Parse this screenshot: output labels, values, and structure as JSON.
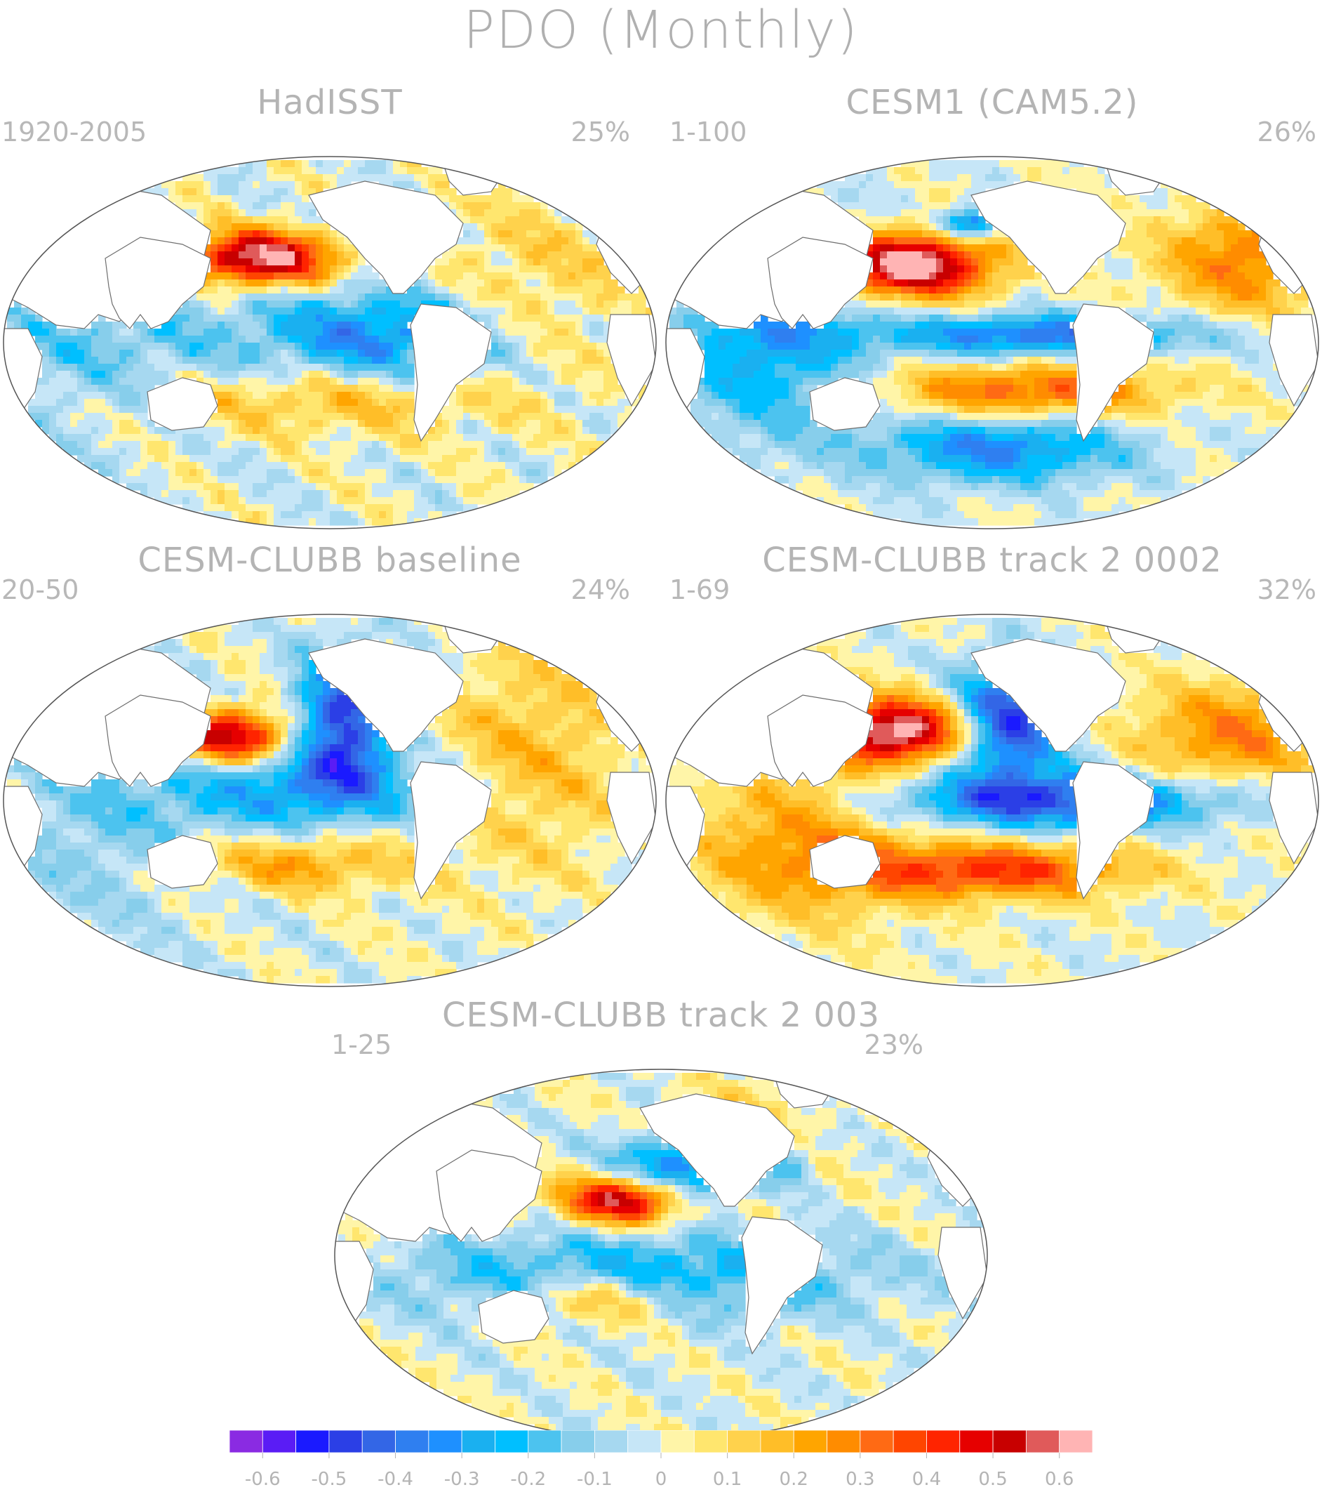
{
  "title": "PDO (Monthly)",
  "panels": [
    {
      "name": "HadISST",
      "years": "1920-2005",
      "pct": "25%"
    },
    {
      "name": "CESM1 (CAM5.2)",
      "years": "1-100",
      "pct": "26%"
    },
    {
      "name": "CESM-CLUBB baseline",
      "years": "20-50",
      "pct": "24%"
    },
    {
      "name": "CESM-CLUBB track 2 0002",
      "years": "1-69",
      "pct": "32%"
    },
    {
      "name": "CESM-CLUBB track 2 003",
      "years": "1-25",
      "pct": "23%"
    }
  ],
  "colorbar": {
    "colors": [
      "#8a2be2",
      "#5a1cf5",
      "#1a1aff",
      "#2b3fe6",
      "#3366e6",
      "#2f7ff0",
      "#1e90ff",
      "#1ab0f0",
      "#00bfff",
      "#4cc3ef",
      "#87ceeb",
      "#a6d8f0",
      "#c6e6f7",
      "#fff5a8",
      "#ffe66e",
      "#ffd24c",
      "#ffbe28",
      "#ffa500",
      "#ff8c00",
      "#ff6a14",
      "#ff4500",
      "#ff2400",
      "#e60000",
      "#c80000",
      "#e05a5a",
      "#ffb4b4"
    ],
    "tick_labels": [
      "-0.6",
      "-0.5",
      "-0.4",
      "-0.3",
      "-0.2",
      "-0.1",
      "0",
      "0.1",
      "0.2",
      "0.3",
      "0.4",
      "0.5",
      "0.6"
    ],
    "tick_values": [
      -0.6,
      -0.5,
      -0.4,
      -0.3,
      -0.2,
      -0.1,
      0,
      0.1,
      0.2,
      0.3,
      0.4,
      0.5,
      0.6
    ],
    "range": [
      -0.65,
      0.65
    ]
  }
}
